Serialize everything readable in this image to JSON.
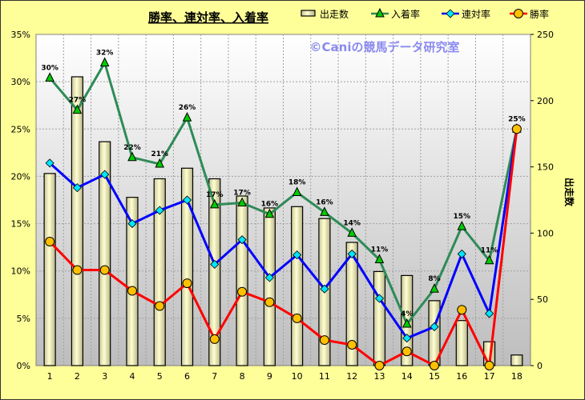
{
  "chart_data": {
    "type": "bar+line",
    "title": "勝率、連対率、入着率",
    "watermark": "©Caniの競馬データ研究室",
    "categories": [
      "1",
      "2",
      "3",
      "4",
      "5",
      "6",
      "7",
      "8",
      "9",
      "10",
      "11",
      "12",
      "13",
      "14",
      "15",
      "16",
      "17",
      "18"
    ],
    "y_left": {
      "range": [
        0,
        35
      ],
      "ticks": [
        "0%",
        "5%",
        "10%",
        "15%",
        "20%",
        "25%",
        "30%",
        "35%"
      ]
    },
    "y_right": {
      "label": "出走数",
      "range": [
        0,
        250
      ],
      "ticks": [
        "0",
        "50",
        "100",
        "150",
        "200",
        "250"
      ]
    },
    "legend": {
      "placement": "top-right",
      "entries": [
        "出走数",
        "入着率",
        "連対率",
        "勝率"
      ]
    },
    "grid": true,
    "bars": {
      "name": "出走数",
      "axis": "right",
      "values": [
        145,
        218,
        169,
        127,
        141,
        149,
        141,
        128,
        119,
        120,
        111,
        93,
        71,
        68,
        49,
        34,
        18,
        8
      ]
    },
    "series": [
      {
        "name": "入着率",
        "color": "#2E8B57",
        "marker": "triangle",
        "marker_color": "#00CC00",
        "values": [
          30.4,
          27.0,
          32.0,
          22.0,
          21.3,
          26.2,
          17.0,
          17.2,
          16.0,
          18.3,
          16.2,
          14.0,
          11.2,
          4.4,
          8.1,
          14.7,
          11.1,
          25.0
        ],
        "labels": [
          "30%",
          "27%",
          "32%",
          "22%",
          "21%",
          "26%",
          "17%",
          "17%",
          "16%",
          "18%",
          "16%",
          "14%",
          "11%",
          "4%",
          "8%",
          "15%",
          "11%",
          ""
        ]
      },
      {
        "name": "連対率",
        "color": "#0000FF",
        "marker": "diamond",
        "marker_color": "#00E5FF",
        "values": [
          21.4,
          18.8,
          20.2,
          15.0,
          16.4,
          17.5,
          10.7,
          13.3,
          9.3,
          11.7,
          8.1,
          11.8,
          7.1,
          2.9,
          4.1,
          11.8,
          5.5,
          25.0
        ]
      },
      {
        "name": "勝率",
        "color": "#FF0000",
        "marker": "circle",
        "marker_color": "#FFC000",
        "values": [
          13.1,
          10.1,
          10.1,
          7.9,
          6.3,
          8.7,
          2.8,
          7.8,
          6.7,
          5.0,
          2.7,
          2.2,
          0,
          1.5,
          0,
          5.9,
          0,
          25.0
        ],
        "labels": [
          "",
          "",
          "",
          "",
          "",
          "",
          "",
          "",
          "",
          "",
          "",
          "",
          "",
          "",
          "",
          "",
          "",
          "25%"
        ]
      }
    ]
  }
}
